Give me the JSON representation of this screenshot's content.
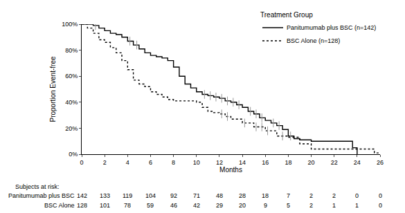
{
  "chart_data": {
    "type": "line",
    "xlabel": "Months",
    "ylabel": "Proportion Event-free",
    "legend": "top right",
    "legend_title": "Treatment Group",
    "grid": false,
    "xlim": [
      0,
      26
    ],
    "xticks": [
      0,
      2,
      4,
      6,
      8,
      10,
      12,
      14,
      16,
      18,
      20,
      22,
      24,
      26
    ],
    "ylim": [
      0,
      100
    ],
    "yticks": [
      {
        "value": 0,
        "label": "0%"
      },
      {
        "value": 20,
        "label": "20%"
      },
      {
        "value": 40,
        "label": "40%"
      },
      {
        "value": 60,
        "label": "60%"
      },
      {
        "value": 80,
        "label": "80%"
      },
      {
        "value": 100,
        "label": "100%"
      }
    ],
    "at_risk_title": "Subjects at risk:",
    "at_risk_x": [
      0,
      2,
      4,
      6,
      8,
      10,
      12,
      14,
      16,
      18,
      20,
      22,
      24,
      26
    ],
    "series": [
      {
        "name": "Panitumumab plus BSC (n=142)",
        "table_label": "Panitumumab plus BSC",
        "color": "#000000",
        "line_style": "solid",
        "marker": "vertical-tick",
        "x": [
          0,
          1,
          1.5,
          2,
          2.5,
          3,
          3.5,
          4,
          4.5,
          5,
          5.5,
          6,
          6.5,
          7,
          7.5,
          8,
          8.5,
          9,
          9.5,
          10,
          10.5,
          11,
          11.5,
          12,
          12.5,
          13,
          13.5,
          14,
          14.5,
          15,
          15.5,
          16,
          16.5,
          17,
          17.5,
          18,
          18.5,
          19,
          20,
          23.6,
          24
        ],
        "values": [
          100,
          99,
          97,
          95,
          93,
          92,
          90,
          87,
          84,
          81,
          78,
          76,
          75,
          74,
          72,
          67,
          60,
          54,
          51,
          48,
          46,
          45,
          44,
          43,
          41,
          40,
          38,
          36,
          33,
          31,
          28,
          26,
          24,
          22,
          19,
          14,
          12,
          11,
          10,
          5,
          0
        ],
        "censored": {
          "x": [
            1.2,
            4.2,
            4.8,
            10.7,
            11.2,
            11.7,
            12.2,
            12.7,
            13.2,
            13.7,
            14.7,
            15.2,
            15.7,
            16.7,
            17.2,
            18.2
          ],
          "y": [
            99,
            87,
            84,
            46,
            45,
            44,
            43,
            41,
            40,
            38,
            33,
            31,
            28,
            24,
            22,
            14
          ]
        },
        "at_risk": [
          142,
          133,
          119,
          104,
          92,
          71,
          48,
          28,
          18,
          7,
          2,
          2,
          0,
          0
        ]
      },
      {
        "name": "BSC Alone (n=128)",
        "table_label": "BSC Alone",
        "color": "#000000",
        "line_style": "dot",
        "marker": "vertical-tick",
        "x": [
          0,
          0.5,
          1,
          1.5,
          2,
          2.5,
          3,
          3.5,
          4,
          4.5,
          5,
          5.5,
          6,
          6.5,
          7,
          7.5,
          8,
          10,
          10.5,
          11,
          11.5,
          12,
          12.5,
          13,
          14,
          15,
          16,
          17,
          18,
          19,
          20,
          25.5,
          26
        ],
        "values": [
          100,
          97,
          93,
          88,
          86,
          82,
          78,
          72,
          65,
          57,
          54,
          52,
          48,
          46,
          44,
          42,
          41,
          40,
          36,
          33,
          32,
          31,
          29,
          27,
          24,
          21,
          18,
          14,
          13,
          8,
          4,
          1,
          1
        ],
        "censored": {
          "x": [
            12.2,
            12.7,
            14.2,
            15.2,
            15.7,
            16.2,
            17.5
          ],
          "y": [
            31,
            29,
            24,
            21,
            21,
            18,
            14
          ]
        },
        "at_risk": [
          128,
          101,
          78,
          59,
          46,
          42,
          29,
          20,
          9,
          5,
          2,
          1,
          1,
          0
        ]
      }
    ]
  }
}
